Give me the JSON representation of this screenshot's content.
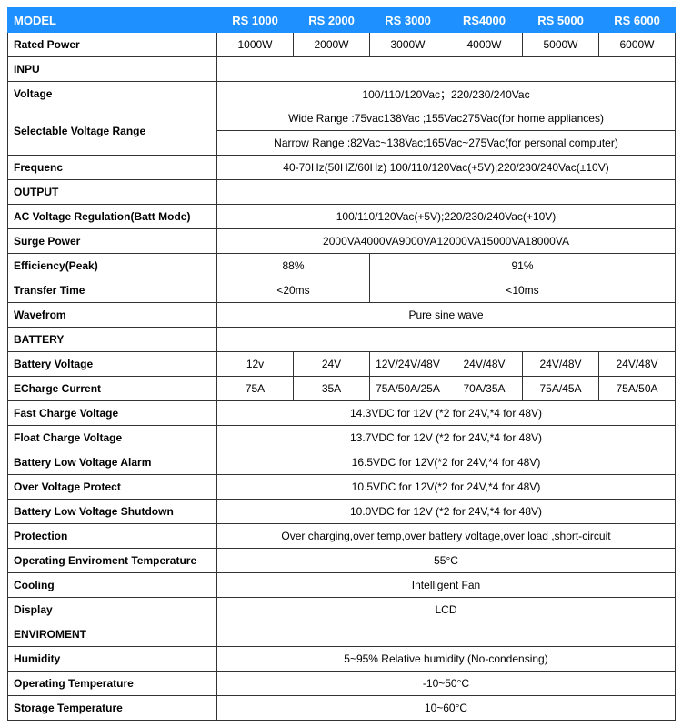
{
  "header": {
    "model_label": "MODEL",
    "models": [
      "RS 1000",
      "RS 2000",
      "RS 3000",
      "RS4000",
      "RS 5000",
      "RS 6000"
    ]
  },
  "rows": {
    "rated_power": {
      "label": "Rated Power",
      "vals": [
        "1000W",
        "2000W",
        "3000W",
        "4000W",
        "5000W",
        "6000W"
      ]
    },
    "inpu": {
      "label": "INPU"
    },
    "voltage": {
      "label": "Voltage",
      "val": "100/110/120Vac；220/230/240Vac"
    },
    "sel_volt": {
      "label": "Selectable Voltage Range",
      "val1": "Wide Range :75vac138Vac ;155Vac275Vac(for home appliances)",
      "val2": "Narrow Range :82Vac~138Vac;165Vac~275Vac(for personal computer)"
    },
    "frequenc": {
      "label": "Frequenc",
      "val": "40-70Hz(50HZ/60Hz) 100/110/120Vac(+5V);220/230/240Vac(±10V)"
    },
    "output": {
      "label": "OUTPUT"
    },
    "ac_reg": {
      "label": "AC Voltage Regulation(Batt Mode)",
      "val": "100/110/120Vac(+5V);220/230/240Vac(+10V)"
    },
    "surge": {
      "label": "Surge Power",
      "val": "2000VA4000VA9000VA12000VA15000VA18000VA"
    },
    "eff": {
      "label": "Efficiency(Peak)",
      "v1": "88%",
      "v2": "91%"
    },
    "transfer": {
      "label": "Transfer Time",
      "v1": "<20ms",
      "v2": "<10ms"
    },
    "waveform": {
      "label": "Wavefrom",
      "val": "Pure sine wave"
    },
    "battery": {
      "label": "BATTERY"
    },
    "batt_volt": {
      "label": "Battery Voltage",
      "vals": [
        "12v",
        "24V",
        "12V/24V/48V",
        "24V/48V",
        "24V/48V",
        "24V/48V"
      ]
    },
    "echarge": {
      "label": "ECharge Current",
      "vals": [
        "75A",
        "35A",
        "75A/50A/25A",
        "70A/35A",
        "75A/45A",
        "75A/50A"
      ]
    },
    "fast_charge": {
      "label": "Fast Charge Voltage",
      "val": "14.3VDC for 12V (*2 for 24V,*4 for 48V)"
    },
    "float_charge": {
      "label": "Float Charge Voltage",
      "val": "13.7VDC for 12V (*2 for 24V,*4 for 48V)"
    },
    "low_alarm": {
      "label": "Battery Low Voltage Alarm",
      "val": "16.5VDC for 12V(*2 for 24V,*4 for 48V)"
    },
    "over_volt": {
      "label": "Over Voltage Protect",
      "val": "10.5VDC for 12V(*2 for 24V,*4 for 48V)"
    },
    "low_shutdown": {
      "label": "Battery Low Voltage Shutdown",
      "val": "10.0VDC for 12V (*2 for 24V,*4 for 48V)"
    },
    "protection": {
      "label": "Protection",
      "val": "Over charging,over temp,over battery voltage,over load ,short-circuit"
    },
    "op_env_temp": {
      "label": "Operating Enviroment Temperature",
      "val": "55°C"
    },
    "cooling": {
      "label": "Cooling",
      "val": "Intelligent Fan"
    },
    "display": {
      "label": "Display",
      "val": "LCD"
    },
    "enviroment": {
      "label": "ENVIROMENT"
    },
    "humidity": {
      "label": "Humidity",
      "val": "5~95% Relative humidity (No-condensing)"
    },
    "op_temp": {
      "label": "Operating Temperature",
      "val": "-10~50°C"
    },
    "storage_temp": {
      "label": "Storage Temperature",
      "val": "10~60°C"
    }
  },
  "colors": {
    "header_bg": "#1e90ff",
    "header_fg": "#ffffff",
    "border": "#333333",
    "bg": "#ffffff"
  }
}
